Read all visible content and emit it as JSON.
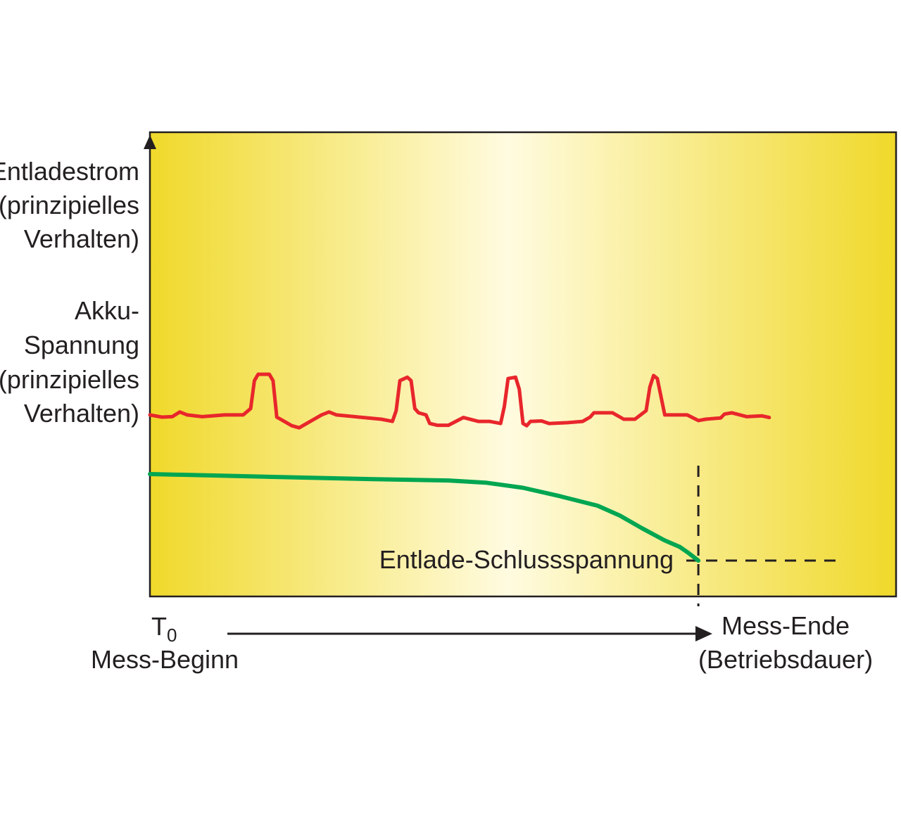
{
  "chart_data": {
    "type": "line",
    "xlabel": {
      "start_main": "T",
      "start_sub": "0",
      "start_caption": "Mess-Beginn",
      "end_line1": "Mess-Ende",
      "end_line2": "(Betriebsdauer)"
    },
    "ylabels": {
      "current": [
        "Entladestrom",
        "(prinzipielles",
        "Verhalten)"
      ],
      "voltage": [
        "Akku-",
        "Spannung",
        "(prinzipielles",
        "Verhalten)"
      ]
    },
    "annotation": "Entlade-Schlussspannung",
    "colors": {
      "current": "#e8262b",
      "voltage": "#00a651",
      "frame": "#231f20",
      "gradient_edge": "#f0d92a",
      "gradient_center": "#fffbe0"
    },
    "series": [
      {
        "key": "current",
        "values": [
          [
            0.0,
            0.34
          ],
          [
            0.016,
            0.335
          ],
          [
            0.03,
            0.336
          ],
          [
            0.04,
            0.347
          ],
          [
            0.05,
            0.34
          ],
          [
            0.07,
            0.336
          ],
          [
            0.1,
            0.34
          ],
          [
            0.125,
            0.34
          ],
          [
            0.135,
            0.355
          ],
          [
            0.14,
            0.42
          ],
          [
            0.145,
            0.435
          ],
          [
            0.16,
            0.435
          ],
          [
            0.165,
            0.42
          ],
          [
            0.17,
            0.335
          ],
          [
            0.18,
            0.325
          ],
          [
            0.19,
            0.315
          ],
          [
            0.2,
            0.31
          ],
          [
            0.215,
            0.325
          ],
          [
            0.23,
            0.34
          ],
          [
            0.24,
            0.347
          ],
          [
            0.25,
            0.34
          ],
          [
            0.28,
            0.335
          ],
          [
            0.31,
            0.33
          ],
          [
            0.325,
            0.325
          ],
          [
            0.33,
            0.35
          ],
          [
            0.335,
            0.42
          ],
          [
            0.345,
            0.428
          ],
          [
            0.35,
            0.42
          ],
          [
            0.355,
            0.355
          ],
          [
            0.36,
            0.345
          ],
          [
            0.37,
            0.34
          ],
          [
            0.375,
            0.32
          ],
          [
            0.385,
            0.316
          ],
          [
            0.4,
            0.316
          ],
          [
            0.41,
            0.325
          ],
          [
            0.42,
            0.334
          ],
          [
            0.44,
            0.325
          ],
          [
            0.455,
            0.325
          ],
          [
            0.47,
            0.32
          ],
          [
            0.475,
            0.36
          ],
          [
            0.48,
            0.425
          ],
          [
            0.49,
            0.428
          ],
          [
            0.495,
            0.4
          ],
          [
            0.5,
            0.32
          ],
          [
            0.505,
            0.315
          ],
          [
            0.51,
            0.325
          ],
          [
            0.525,
            0.326
          ],
          [
            0.535,
            0.32
          ],
          [
            0.56,
            0.322
          ],
          [
            0.58,
            0.325
          ],
          [
            0.59,
            0.335
          ],
          [
            0.595,
            0.345
          ],
          [
            0.62,
            0.345
          ],
          [
            0.635,
            0.33
          ],
          [
            0.65,
            0.33
          ],
          [
            0.665,
            0.35
          ],
          [
            0.67,
            0.405
          ],
          [
            0.675,
            0.432
          ],
          [
            0.68,
            0.425
          ],
          [
            0.69,
            0.34
          ],
          [
            0.72,
            0.34
          ],
          [
            0.735,
            0.327
          ],
          [
            0.745,
            0.33
          ],
          [
            0.765,
            0.333
          ],
          [
            0.77,
            0.342
          ],
          [
            0.78,
            0.345
          ],
          [
            0.8,
            0.336
          ],
          [
            0.82,
            0.338
          ],
          [
            0.83,
            0.334
          ]
        ]
      },
      {
        "key": "voltage",
        "values": [
          [
            0.0,
            0.202
          ],
          [
            0.1,
            0.198
          ],
          [
            0.2,
            0.194
          ],
          [
            0.3,
            0.19
          ],
          [
            0.4,
            0.187
          ],
          [
            0.45,
            0.182
          ],
          [
            0.5,
            0.17
          ],
          [
            0.55,
            0.15
          ],
          [
            0.6,
            0.128
          ],
          [
            0.63,
            0.105
          ],
          [
            0.66,
            0.075
          ],
          [
            0.69,
            0.047
          ],
          [
            0.71,
            0.032
          ],
          [
            0.72,
            0.02
          ],
          [
            0.735,
            0.0
          ]
        ]
      }
    ],
    "cutoff": {
      "x": 0.735,
      "y": 0.0
    }
  }
}
